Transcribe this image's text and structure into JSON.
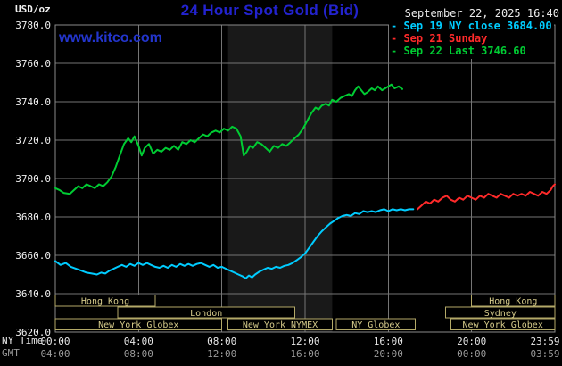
{
  "header": {
    "units_label": "USD/oz",
    "title": "24 Hour Spot Gold (Bid)",
    "datetime": "September 22, 2025 16:40",
    "watermark": "www.kitco.com"
  },
  "legend": {
    "items": [
      {
        "marker": "-",
        "label": "Sep 19 NY close 3684.00",
        "color": "#00ccff"
      },
      {
        "marker": "-",
        "label": "Sep 21 Sunday",
        "color": "#ff2a2a"
      },
      {
        "marker": "-",
        "label": "Sep 22 Last 3746.60",
        "color": "#00cc33"
      }
    ]
  },
  "axes": {
    "ny_label": "NY Time",
    "gmt_label": "GMT",
    "ny_ticks": [
      "00:00",
      "04:00",
      "08:00",
      "12:00",
      "16:00",
      "20:00",
      "23:59"
    ],
    "gmt_ticks": [
      "04:00",
      "08:00",
      "12:00",
      "16:00",
      "20:00",
      "00:00",
      "03:59"
    ],
    "y_ticks": [
      "3780.0",
      "3760.0",
      "3740.0",
      "3720.0",
      "3700.0",
      "3680.0",
      "3660.0",
      "3640.0",
      "3620.0"
    ]
  },
  "sessions": [
    {
      "label": "Hong Kong",
      "row": 0,
      "start_hour": 0,
      "end_hour": 4.8
    },
    {
      "label": "London",
      "row": 1,
      "start_hour": 3.0,
      "end_hour": 11.5
    },
    {
      "label": "New York Globex",
      "row": 2,
      "start_hour": 0,
      "end_hour": 8.0
    },
    {
      "label": "New York NYMEX",
      "row": 2,
      "start_hour": 8.3,
      "end_hour": 13.3
    },
    {
      "label": "NY Globex",
      "row": 2,
      "start_hour": 13.5,
      "end_hour": 17.3
    },
    {
      "label": "Hong Kong",
      "row": 0,
      "start_hour": 20.0,
      "end_hour": 24
    },
    {
      "label": "Sydney",
      "row": 1,
      "start_hour": 18.75,
      "end_hour": 24
    },
    {
      "label": "New York Globex",
      "row": 2,
      "start_hour": 19.0,
      "end_hour": 24
    }
  ],
  "chart_data": {
    "type": "line",
    "title": "24 Hour Spot Gold (Bid)",
    "xlabel": "NY Time (hours)",
    "ylabel": "USD/oz",
    "xlim": [
      0,
      24
    ],
    "ylim": [
      3620,
      3780
    ],
    "grid": true,
    "x_gridlines_hours": [
      4,
      8,
      12,
      16,
      20
    ],
    "y_gridlines": [
      3640,
      3660,
      3680,
      3700,
      3720,
      3740,
      3760
    ],
    "shaded_region_hours": [
      8.3,
      13.3
    ],
    "colors": {
      "grid": "#757575",
      "border": "#8a8a8a",
      "shading": "#191919",
      "session_box": "#b3a968",
      "session_text": "#d6cb8b"
    },
    "series": [
      {
        "name": "Sep 19 NY close",
        "color": "#00ccff",
        "close_value": 3684.0,
        "points": [
          [
            0,
            3657
          ],
          [
            0.25,
            3655
          ],
          [
            0.5,
            3656
          ],
          [
            0.75,
            3654
          ],
          [
            1.0,
            3653
          ],
          [
            1.25,
            3652
          ],
          [
            1.5,
            3651
          ],
          [
            1.75,
            3650.5
          ],
          [
            2.0,
            3650
          ],
          [
            2.2,
            3651
          ],
          [
            2.4,
            3650.5
          ],
          [
            2.6,
            3652
          ],
          [
            2.8,
            3653
          ],
          [
            3.0,
            3654
          ],
          [
            3.2,
            3655
          ],
          [
            3.4,
            3654
          ],
          [
            3.6,
            3655.5
          ],
          [
            3.8,
            3654.5
          ],
          [
            4.0,
            3656
          ],
          [
            4.2,
            3655
          ],
          [
            4.4,
            3656
          ],
          [
            4.6,
            3655
          ],
          [
            4.8,
            3654
          ],
          [
            5.0,
            3653.5
          ],
          [
            5.2,
            3654.5
          ],
          [
            5.4,
            3653.5
          ],
          [
            5.6,
            3655
          ],
          [
            5.8,
            3654
          ],
          [
            6.0,
            3655.5
          ],
          [
            6.2,
            3654.5
          ],
          [
            6.4,
            3655.5
          ],
          [
            6.6,
            3654.5
          ],
          [
            6.8,
            3655.5
          ],
          [
            7.0,
            3656
          ],
          [
            7.2,
            3655
          ],
          [
            7.4,
            3654
          ],
          [
            7.6,
            3655
          ],
          [
            7.8,
            3653.5
          ],
          [
            8.0,
            3654
          ],
          [
            8.2,
            3653
          ],
          [
            8.4,
            3652
          ],
          [
            8.6,
            3651
          ],
          [
            8.8,
            3650
          ],
          [
            9.0,
            3649
          ],
          [
            9.15,
            3648
          ],
          [
            9.3,
            3649.5
          ],
          [
            9.45,
            3648.5
          ],
          [
            9.6,
            3650
          ],
          [
            9.8,
            3651.5
          ],
          [
            10.0,
            3652.5
          ],
          [
            10.2,
            3653.5
          ],
          [
            10.4,
            3653
          ],
          [
            10.6,
            3654
          ],
          [
            10.8,
            3653.5
          ],
          [
            11.0,
            3654.5
          ],
          [
            11.2,
            3655
          ],
          [
            11.4,
            3656
          ],
          [
            11.6,
            3657.5
          ],
          [
            11.8,
            3659
          ],
          [
            12.0,
            3661
          ],
          [
            12.2,
            3664
          ],
          [
            12.4,
            3667
          ],
          [
            12.6,
            3670
          ],
          [
            12.8,
            3672.5
          ],
          [
            13.0,
            3674.5
          ],
          [
            13.2,
            3676.5
          ],
          [
            13.4,
            3678
          ],
          [
            13.6,
            3679.5
          ],
          [
            13.8,
            3680.5
          ],
          [
            14.0,
            3681
          ],
          [
            14.2,
            3680.5
          ],
          [
            14.4,
            3682
          ],
          [
            14.6,
            3681.5
          ],
          [
            14.8,
            3683
          ],
          [
            15.0,
            3682.5
          ],
          [
            15.2,
            3683
          ],
          [
            15.4,
            3682.5
          ],
          [
            15.6,
            3683.5
          ],
          [
            15.8,
            3684
          ],
          [
            16.0,
            3683
          ],
          [
            16.2,
            3684
          ],
          [
            16.4,
            3683.5
          ],
          [
            16.6,
            3684
          ],
          [
            16.8,
            3683.5
          ],
          [
            17.0,
            3684
          ],
          [
            17.2,
            3684
          ]
        ]
      },
      {
        "name": "Sep 21 Sunday",
        "color": "#ff2a2a",
        "points": [
          [
            17.4,
            3684
          ],
          [
            17.6,
            3686
          ],
          [
            17.8,
            3688
          ],
          [
            18.0,
            3687
          ],
          [
            18.2,
            3689
          ],
          [
            18.4,
            3688
          ],
          [
            18.6,
            3690
          ],
          [
            18.8,
            3691
          ],
          [
            19.0,
            3689
          ],
          [
            19.2,
            3688
          ],
          [
            19.4,
            3690
          ],
          [
            19.6,
            3689
          ],
          [
            19.8,
            3691
          ],
          [
            20.0,
            3690
          ],
          [
            20.2,
            3689
          ],
          [
            20.4,
            3691
          ],
          [
            20.6,
            3690
          ],
          [
            20.8,
            3692
          ],
          [
            21.0,
            3691
          ],
          [
            21.2,
            3690
          ],
          [
            21.4,
            3692
          ],
          [
            21.6,
            3691
          ],
          [
            21.8,
            3690
          ],
          [
            22.0,
            3692
          ],
          [
            22.2,
            3691
          ],
          [
            22.4,
            3692
          ],
          [
            22.6,
            3691
          ],
          [
            22.8,
            3693
          ],
          [
            23.0,
            3692
          ],
          [
            23.2,
            3691
          ],
          [
            23.4,
            3693
          ],
          [
            23.6,
            3692
          ],
          [
            23.8,
            3694
          ],
          [
            23.9,
            3696
          ],
          [
            24.0,
            3697
          ]
        ]
      },
      {
        "name": "Sep 22 Last",
        "color": "#00cc33",
        "last_value": 3746.6,
        "points": [
          [
            0,
            3695
          ],
          [
            0.2,
            3694
          ],
          [
            0.4,
            3692.5
          ],
          [
            0.7,
            3692
          ],
          [
            0.9,
            3694
          ],
          [
            1.1,
            3696
          ],
          [
            1.3,
            3695
          ],
          [
            1.5,
            3697
          ],
          [
            1.7,
            3696
          ],
          [
            1.9,
            3695
          ],
          [
            2.1,
            3697
          ],
          [
            2.3,
            3696
          ],
          [
            2.5,
            3698
          ],
          [
            2.7,
            3701
          ],
          [
            2.9,
            3706
          ],
          [
            3.1,
            3712
          ],
          [
            3.3,
            3718
          ],
          [
            3.5,
            3721
          ],
          [
            3.65,
            3719
          ],
          [
            3.8,
            3722
          ],
          [
            4.0,
            3717
          ],
          [
            4.15,
            3712
          ],
          [
            4.3,
            3716
          ],
          [
            4.5,
            3718
          ],
          [
            4.7,
            3713
          ],
          [
            4.9,
            3715
          ],
          [
            5.1,
            3714
          ],
          [
            5.3,
            3716
          ],
          [
            5.5,
            3715
          ],
          [
            5.7,
            3717
          ],
          [
            5.9,
            3715
          ],
          [
            6.1,
            3719
          ],
          [
            6.3,
            3718
          ],
          [
            6.5,
            3720
          ],
          [
            6.7,
            3719
          ],
          [
            6.9,
            3721
          ],
          [
            7.1,
            3723
          ],
          [
            7.3,
            3722
          ],
          [
            7.5,
            3724
          ],
          [
            7.7,
            3725
          ],
          [
            7.9,
            3724
          ],
          [
            8.1,
            3726
          ],
          [
            8.3,
            3725
          ],
          [
            8.5,
            3727
          ],
          [
            8.7,
            3726
          ],
          [
            8.9,
            3722
          ],
          [
            9.05,
            3712
          ],
          [
            9.2,
            3714
          ],
          [
            9.35,
            3717
          ],
          [
            9.5,
            3716
          ],
          [
            9.7,
            3719
          ],
          [
            9.9,
            3718
          ],
          [
            10.1,
            3716
          ],
          [
            10.3,
            3714
          ],
          [
            10.5,
            3717
          ],
          [
            10.7,
            3716
          ],
          [
            10.9,
            3718
          ],
          [
            11.1,
            3717
          ],
          [
            11.3,
            3719
          ],
          [
            11.5,
            3721
          ],
          [
            11.7,
            3723
          ],
          [
            11.9,
            3726
          ],
          [
            12.1,
            3730
          ],
          [
            12.3,
            3734
          ],
          [
            12.5,
            3737
          ],
          [
            12.65,
            3736
          ],
          [
            12.8,
            3738
          ],
          [
            13.0,
            3739
          ],
          [
            13.15,
            3738
          ],
          [
            13.3,
            3741
          ],
          [
            13.5,
            3740
          ],
          [
            13.7,
            3742
          ],
          [
            13.9,
            3743
          ],
          [
            14.1,
            3744
          ],
          [
            14.25,
            3743
          ],
          [
            14.4,
            3746
          ],
          [
            14.55,
            3748
          ],
          [
            14.7,
            3746
          ],
          [
            14.85,
            3744
          ],
          [
            15.0,
            3745
          ],
          [
            15.2,
            3747
          ],
          [
            15.35,
            3746
          ],
          [
            15.5,
            3748
          ],
          [
            15.7,
            3746
          ],
          [
            15.85,
            3747
          ],
          [
            16.0,
            3748
          ],
          [
            16.15,
            3749
          ],
          [
            16.3,
            3747
          ],
          [
            16.5,
            3748
          ],
          [
            16.67,
            3746.6
          ]
        ]
      }
    ]
  }
}
